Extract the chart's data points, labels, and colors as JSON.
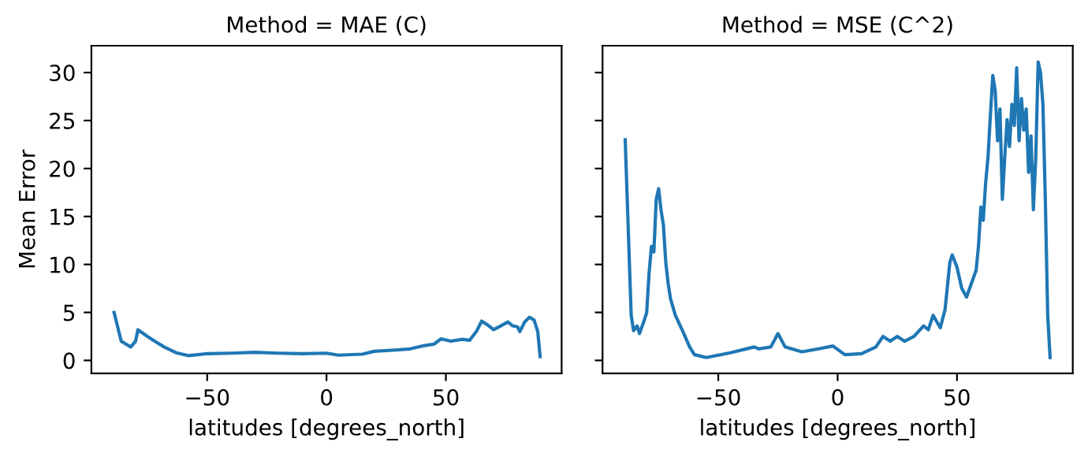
{
  "chart_data": [
    {
      "type": "line",
      "title": "Method = MAE (C)",
      "xlabel": "latitudes [degrees_north]",
      "ylabel": "Mean Error",
      "xlim": [
        -98.5,
        98.5
      ],
      "ylim": [
        -1.35,
        32.8
      ],
      "xticks": [
        {
          "value": -50,
          "label": "−50"
        },
        0,
        50
      ],
      "yticks": [
        0,
        5,
        10,
        15,
        20,
        25,
        30
      ],
      "series": [
        {
          "color": "#1f77b4",
          "x": [
            -89,
            -86,
            -84,
            -82,
            -80,
            -79,
            -75,
            -72,
            -68,
            -63,
            -58,
            -50,
            -40,
            -30,
            -20,
            -10,
            0,
            5,
            15,
            20,
            30,
            35,
            40,
            45,
            48,
            52,
            57,
            60,
            63,
            65,
            68,
            70,
            73,
            76,
            78,
            80,
            81,
            83,
            85,
            87,
            88.5,
            89.5
          ],
          "values": [
            5.0,
            2.0,
            1.7,
            1.4,
            2.0,
            3.2,
            2.5,
            2.0,
            1.4,
            0.8,
            0.5,
            0.7,
            0.75,
            0.85,
            0.75,
            0.7,
            0.75,
            0.55,
            0.65,
            0.95,
            1.1,
            1.2,
            1.5,
            1.7,
            2.25,
            2.0,
            2.2,
            2.1,
            3.1,
            4.1,
            3.6,
            3.2,
            3.6,
            4.0,
            3.6,
            3.5,
            3.0,
            4.0,
            4.5,
            4.2,
            3.0,
            0.4
          ]
        }
      ]
    },
    {
      "type": "line",
      "title": "Method = MSE (C^2)",
      "xlabel": "latitudes [degrees_north]",
      "xlim": [
        -98.5,
        98.5
      ],
      "ylim": [
        -1.35,
        32.8
      ],
      "tick_labels": "x",
      "xticks": [
        {
          "value": -50,
          "label": "−50"
        },
        0,
        50
      ],
      "yticks": [
        0,
        5,
        10,
        15,
        20,
        25,
        30
      ],
      "series": [
        {
          "color": "#1f77b4",
          "x": [
            -89,
            -88,
            -86.5,
            -85.5,
            -84,
            -83,
            -81,
            -80,
            -79,
            -78,
            -77,
            -76,
            -75,
            -74,
            -73,
            -72,
            -71,
            -70,
            -68,
            -65,
            -62,
            -60,
            -55,
            -45,
            -35,
            -33,
            -28,
            -25,
            -22,
            -15,
            -8,
            -2,
            3,
            10,
            16,
            19,
            22,
            25,
            28,
            32,
            36,
            38,
            40,
            43,
            45,
            47,
            48,
            50,
            52,
            54,
            56,
            58,
            59,
            60,
            61,
            62,
            63,
            64,
            65,
            66,
            67,
            68,
            69,
            70,
            71,
            72,
            73,
            74,
            75,
            76,
            77,
            78,
            79,
            80,
            81,
            82,
            83,
            84,
            85,
            86,
            87,
            88,
            89
          ],
          "values": [
            23.0,
            15.7,
            4.7,
            3.1,
            3.6,
            2.8,
            4.2,
            5.0,
            9.1,
            11.9,
            11.3,
            16.8,
            17.9,
            15.7,
            14.1,
            10.2,
            8.0,
            6.4,
            4.7,
            3.1,
            1.4,
            0.6,
            0.3,
            0.8,
            1.4,
            1.2,
            1.4,
            2.8,
            1.4,
            0.9,
            1.2,
            1.5,
            0.6,
            0.7,
            1.4,
            2.5,
            2.0,
            2.5,
            2.0,
            2.5,
            3.6,
            3.2,
            4.7,
            3.4,
            5.3,
            10.2,
            11.0,
            9.7,
            7.5,
            6.6,
            8.0,
            9.4,
            11.9,
            16.0,
            14.6,
            18.5,
            21.2,
            25.6,
            29.7,
            28.1,
            22.9,
            26.2,
            16.8,
            21.2,
            25.1,
            22.3,
            26.7,
            24.5,
            30.5,
            22.9,
            27.3,
            24.0,
            26.2,
            19.6,
            23.4,
            15.7,
            21.2,
            31.1,
            30.0,
            26.7,
            16.8,
            4.7,
            0.3
          ]
        }
      ]
    }
  ]
}
